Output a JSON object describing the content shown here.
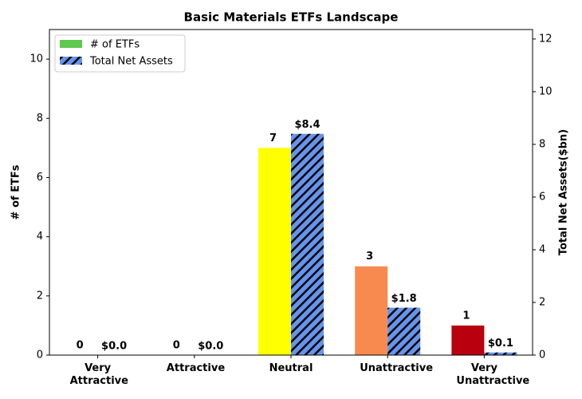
{
  "chart_data": {
    "type": "bar",
    "title": "Basic Materials ETFs Landscape",
    "categories": [
      "Very Attractive",
      "Attractive",
      "Neutral",
      "Unattractive",
      "Very Unattractive"
    ],
    "y_label": "# of ETFs",
    "y2_label": "Total Net Assets($bn)",
    "ylim": [
      0,
      11
    ],
    "yticks": [
      0,
      2,
      4,
      6,
      8,
      10
    ],
    "y2lim": [
      0,
      12.36
    ],
    "y2ticks": [
      0,
      2,
      4,
      6,
      8,
      10,
      12
    ],
    "legend": "upper left",
    "series": [
      {
        "name": "# of ETFs",
        "color": "#5fc84f",
        "colors": [
          "#00a651",
          "#7ccd48",
          "#ffff00",
          "#f88a50",
          "#b8000f"
        ],
        "values": [
          0,
          0,
          7,
          3,
          1
        ]
      },
      {
        "name": "Total Net Assets",
        "color": "#6495ed",
        "hatch": "//",
        "axis": "y2",
        "values": [
          0.0,
          0.0,
          8.4,
          1.8,
          0.1
        ],
        "value_labels": [
          "$0.0",
          "$0.0",
          "$8.4",
          "$1.8",
          "$0.1"
        ]
      }
    ]
  }
}
